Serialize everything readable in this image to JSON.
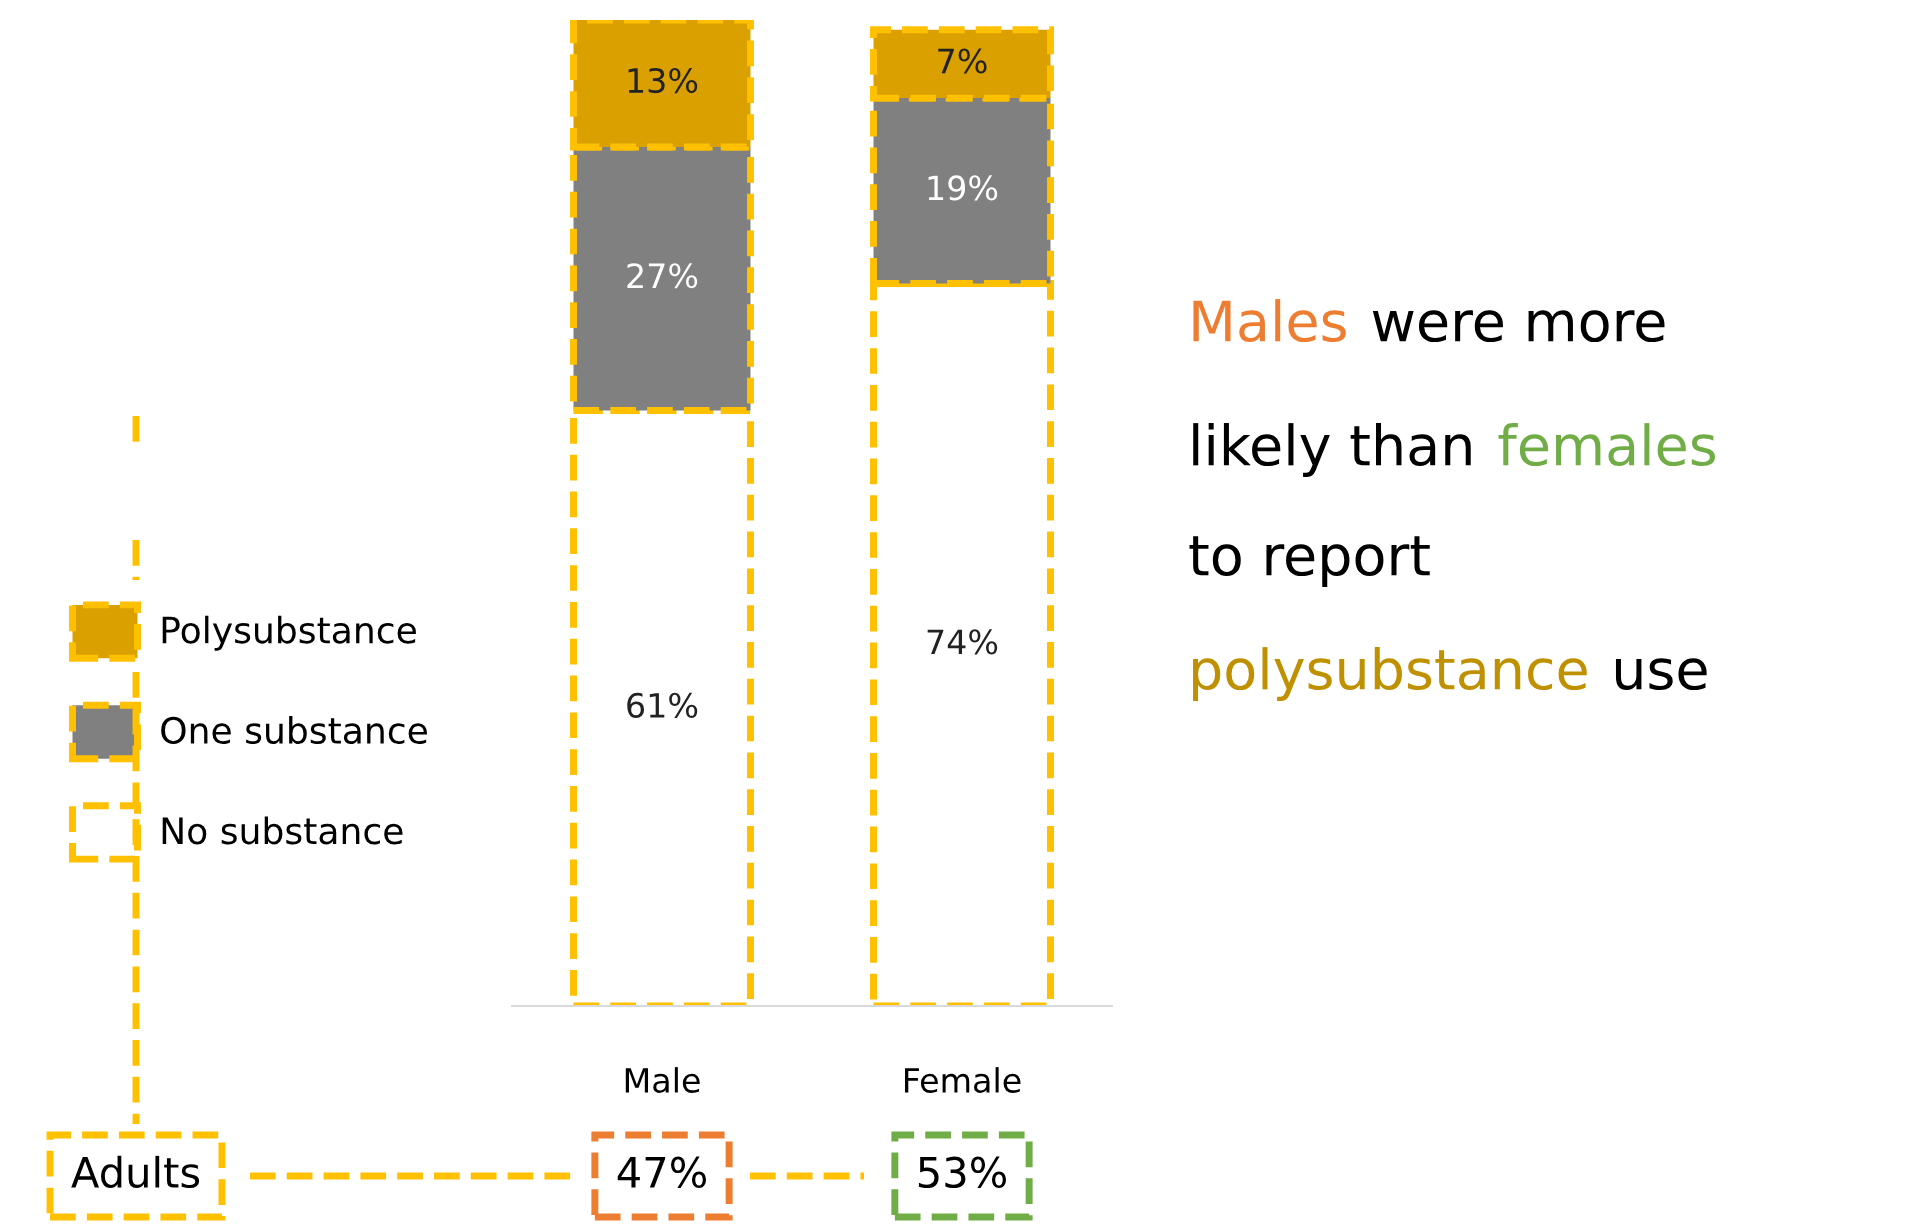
{
  "chart_data": {
    "type": "bar",
    "stacked": true,
    "categories": [
      "Male",
      "Female"
    ],
    "series": [
      {
        "name": "No substance",
        "color": "#ffffff",
        "values": [
          61,
          74
        ],
        "value_labels": [
          "61%",
          "74%"
        ]
      },
      {
        "name": "One substance",
        "color": "#808080",
        "values": [
          27,
          19
        ],
        "value_labels": [
          "27%",
          "19%"
        ]
      },
      {
        "name": "Polysubstance",
        "color": "#d9a000",
        "values": [
          13,
          7
        ],
        "value_labels": [
          "13%",
          "7%"
        ]
      }
    ],
    "legend": "left",
    "grid": false,
    "annotations": [
      "Adults",
      "47%",
      "53%",
      "Males",
      "were more",
      "likely than",
      "females",
      "to report",
      "polysubstance",
      "use"
    ]
  }
}
